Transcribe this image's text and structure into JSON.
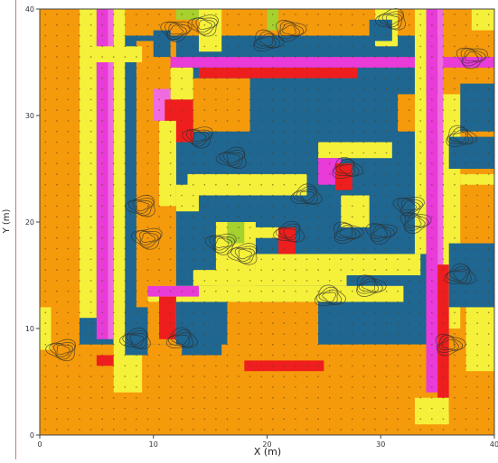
{
  "colors": {
    "ground": "#F59A0B",
    "building": "#1F6690",
    "yellow": "#F5F03A",
    "magenta": "#E83BD8",
    "pink": "#F06BE0",
    "red": "#EE1E1E",
    "lime": "#A6D12E",
    "dot": "#5a3d10",
    "contour": "#2b2b2b"
  },
  "chart_data": {
    "type": "heatmap",
    "title": "",
    "xlabel": "X (m)",
    "ylabel": "Y (m)",
    "xlim": [
      0,
      40
    ],
    "ylim": [
      0,
      40
    ],
    "xticks": [
      "0",
      "10",
      "20",
      "30",
      "40"
    ],
    "yticks": [
      "0",
      "10",
      "20",
      "30",
      "40"
    ],
    "grid": false,
    "cells": [
      {
        "c": "building",
        "x": [
          3.5,
          35.5
        ],
        "y": [
          8.5,
          37.5
        ]
      },
      {
        "c": "ground",
        "x": [
          8.5,
          12
        ],
        "y": [
          8.5,
          37
        ]
      },
      {
        "c": "ground",
        "x": [
          13,
          18.5
        ],
        "y": [
          28.5,
          33.5
        ]
      },
      {
        "c": "ground",
        "x": [
          31.5,
          36
        ],
        "y": [
          28.5,
          32
        ]
      },
      {
        "c": "ground",
        "x": [
          16.5,
          24.5
        ],
        "y": [
          6,
          12.5
        ]
      },
      {
        "c": "ground",
        "x": [
          28,
          35.5
        ],
        "y": [
          3,
          8.5
        ]
      },
      {
        "c": "yellow",
        "x": [
          3.5,
          5
        ],
        "y": [
          11,
          40
        ]
      },
      {
        "c": "magenta",
        "x": [
          5,
          6
        ],
        "y": [
          9,
          40
        ]
      },
      {
        "c": "pink",
        "x": [
          6,
          6.5
        ],
        "y": [
          9,
          40
        ]
      },
      {
        "c": "yellow",
        "x": [
          6.5,
          7.5
        ],
        "y": [
          8.5,
          40
        ]
      },
      {
        "c": "red",
        "x": [
          5,
          7.5
        ],
        "y": [
          6.5,
          7.5
        ]
      },
      {
        "c": "yellow",
        "x": [
          4,
          9
        ],
        "y": [
          35,
          36.5
        ]
      },
      {
        "c": "magenta",
        "x": [
          11.5,
          40
        ],
        "y": [
          34.5,
          35.5
        ]
      },
      {
        "c": "red",
        "x": [
          14,
          28
        ],
        "y": [
          33.5,
          34.5
        ]
      },
      {
        "c": "yellow",
        "x": [
          11.5,
          13.5
        ],
        "y": [
          30.5,
          34.5
        ]
      },
      {
        "c": "pink",
        "x": [
          10,
          11.5
        ],
        "y": [
          29.5,
          32.5
        ]
      },
      {
        "c": "red",
        "x": [
          11,
          13.5
        ],
        "y": [
          27.5,
          31.5
        ]
      },
      {
        "c": "yellow",
        "x": [
          10.5,
          12
        ],
        "y": [
          21.5,
          29.5
        ]
      },
      {
        "c": "yellow",
        "x": [
          12,
          14
        ],
        "y": [
          21,
          23.5
        ]
      },
      {
        "c": "yellow",
        "x": [
          13,
          23.5
        ],
        "y": [
          22.5,
          24.5
        ]
      },
      {
        "c": "yellow",
        "x": [
          24.5,
          31
        ],
        "y": [
          26,
          27.5
        ]
      },
      {
        "c": "magenta",
        "x": [
          24.5,
          26.5
        ],
        "y": [
          23.5,
          26
        ]
      },
      {
        "c": "red",
        "x": [
          26,
          27.5
        ],
        "y": [
          23,
          25.5
        ]
      },
      {
        "c": "yellow",
        "x": [
          26.5,
          29
        ],
        "y": [
          19.5,
          22.5
        ]
      },
      {
        "c": "magenta",
        "x": [
          34,
          35
        ],
        "y": [
          4,
          40
        ]
      },
      {
        "c": "pink",
        "x": [
          35,
          35.5
        ],
        "y": [
          4,
          40
        ]
      },
      {
        "c": "yellow",
        "x": [
          33,
          34
        ],
        "y": [
          17,
          40
        ]
      },
      {
        "c": "yellow",
        "x": [
          35.5,
          37
        ],
        "y": [
          10,
          32
        ]
      },
      {
        "c": "yellow",
        "x": [
          37,
          40
        ],
        "y": [
          23.5,
          24.5
        ]
      },
      {
        "c": "red",
        "x": [
          35,
          36
        ],
        "y": [
          2,
          16
        ]
      },
      {
        "c": "yellow",
        "x": [
          9.5,
          32
        ],
        "y": [
          12.5,
          14
        ]
      },
      {
        "c": "yellow",
        "x": [
          13.5,
          27
        ],
        "y": [
          14,
          15.5
        ]
      },
      {
        "c": "yellow",
        "x": [
          19,
          33.5
        ],
        "y": [
          15,
          17
        ]
      },
      {
        "c": "magenta",
        "x": [
          9.5,
          14
        ],
        "y": [
          13,
          14
        ]
      },
      {
        "c": "red",
        "x": [
          10.5,
          12
        ],
        "y": [
          9,
          13
        ]
      },
      {
        "c": "red",
        "x": [
          18,
          25
        ],
        "y": [
          6,
          7
        ]
      },
      {
        "c": "yellow",
        "x": [
          15.5,
          19
        ],
        "y": [
          14,
          20
        ]
      },
      {
        "c": "lime",
        "x": [
          16.5,
          18
        ],
        "y": [
          18,
          20
        ]
      },
      {
        "c": "yellow",
        "x": [
          18,
          21
        ],
        "y": [
          18.5,
          19.5
        ]
      },
      {
        "c": "red",
        "x": [
          21,
          22.5
        ],
        "y": [
          17,
          19.5
        ]
      },
      {
        "c": "yellow",
        "x": [
          6.5,
          9
        ],
        "y": [
          4,
          9
        ]
      },
      {
        "c": "yellow",
        "x": [
          0,
          1
        ],
        "y": [
          8,
          12
        ]
      },
      {
        "c": "yellow",
        "x": [
          33,
          36
        ],
        "y": [
          1,
          3.5
        ]
      },
      {
        "c": "yellow",
        "x": [
          38,
          40
        ],
        "y": [
          38,
          40
        ]
      },
      {
        "c": "lime",
        "x": [
          12,
          14
        ],
        "y": [
          39,
          40
        ]
      },
      {
        "c": "lime",
        "x": [
          20,
          21
        ],
        "y": [
          38,
          40
        ]
      },
      {
        "c": "yellow",
        "x": [
          37.5,
          40
        ],
        "y": [
          6,
          12
        ]
      },
      {
        "c": "building",
        "x": [
          36,
          40
        ],
        "y": [
          25,
          28
        ]
      },
      {
        "c": "building",
        "x": [
          36,
          40
        ],
        "y": [
          12,
          18
        ]
      },
      {
        "c": "building",
        "x": [
          37,
          40
        ],
        "y": [
          28.5,
          33
        ]
      },
      {
        "c": "building",
        "x": [
          7.5,
          9.5
        ],
        "y": [
          7.5,
          12
        ]
      },
      {
        "c": "building",
        "x": [
          12.5,
          16
        ],
        "y": [
          7.5,
          12.5
        ]
      },
      {
        "c": "building",
        "x": [
          10,
          11.5
        ],
        "y": [
          35.5,
          38
        ]
      },
      {
        "c": "yellow",
        "x": [
          14,
          16
        ],
        "y": [
          36,
          40
        ]
      },
      {
        "c": "yellow",
        "x": [
          29.5,
          31.5
        ],
        "y": [
          36.5,
          40
        ]
      },
      {
        "c": "building",
        "x": [
          29,
          31
        ],
        "y": [
          37,
          39
        ]
      }
    ]
  }
}
